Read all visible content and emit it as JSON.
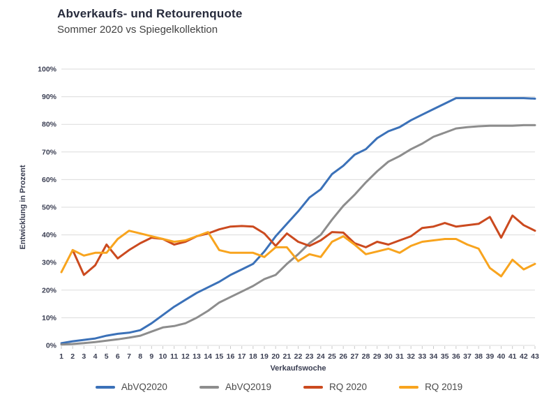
{
  "chart_data": {
    "type": "line",
    "title": "Abverkaufs- und Retourenquote",
    "subtitle": "Sommer 2020 vs Spiegelkollektion",
    "xlabel": "Verkaufswoche",
    "ylabel": "Entwicklung in Prozent",
    "x": [
      1,
      2,
      3,
      4,
      5,
      6,
      7,
      8,
      9,
      10,
      11,
      12,
      13,
      14,
      15,
      16,
      17,
      18,
      19,
      20,
      21,
      22,
      23,
      24,
      25,
      26,
      27,
      28,
      29,
      30,
      31,
      32,
      33,
      34,
      35,
      36,
      37,
      38,
      39,
      40,
      41,
      42,
      43
    ],
    "ylim": [
      0,
      100
    ],
    "ytick_step": 10,
    "ytick_suffix": "%",
    "grid": true,
    "legend_position": "bottom",
    "series": [
      {
        "name": "AbVQ2020",
        "color": "#3b71b8",
        "values": [
          0.8,
          1.5,
          2,
          2.5,
          3.5,
          4.2,
          4.6,
          5.5,
          8,
          11,
          14,
          16.5,
          19,
          21,
          23,
          25.5,
          27.5,
          29.5,
          34,
          39.5,
          44,
          48.5,
          53.5,
          56.5,
          62,
          65,
          69,
          71,
          75,
          77.5,
          79,
          81.5,
          83.5,
          85.5,
          87.5,
          89.5,
          89.5,
          89.5,
          89.5,
          89.5,
          89.5,
          89.5,
          89.3
        ]
      },
      {
        "name": "AbVQ2019",
        "color": "#8d8d8d",
        "values": [
          0.3,
          0.5,
          0.8,
          1.2,
          1.7,
          2.2,
          2.8,
          3.5,
          5,
          6.5,
          7,
          8,
          10,
          12.5,
          15.5,
          17.5,
          19.5,
          21.5,
          24,
          25.5,
          29.5,
          33,
          37,
          40,
          45.5,
          50.5,
          54.5,
          59,
          63,
          66.5,
          68.5,
          71,
          73,
          75.5,
          77,
          78.5,
          79,
          79.3,
          79.5,
          79.5,
          79.5,
          79.7,
          79.7
        ]
      },
      {
        "name": "RQ 2020",
        "color": "#cb4a1f",
        "values": [
          null,
          34.5,
          25.5,
          29,
          36.5,
          31.5,
          34.5,
          37,
          39,
          38.5,
          36.5,
          37.5,
          39.5,
          40.5,
          42,
          43,
          43.2,
          43,
          40.5,
          36,
          40.5,
          37.5,
          36,
          38,
          41,
          40.8,
          37,
          35.5,
          37.5,
          36.5,
          38,
          39.5,
          42.5,
          43,
          44.3,
          43,
          43.5,
          44,
          46.5,
          39,
          47,
          43.5,
          41.5
        ]
      },
      {
        "name": "RQ 2019",
        "color": "#f8a41e",
        "values": [
          26.5,
          34.5,
          32.5,
          33.5,
          33.5,
          38.5,
          41.5,
          40.5,
          39.5,
          38.5,
          37.5,
          38,
          39.5,
          41,
          34.5,
          33.5,
          33.5,
          33.5,
          32,
          35.5,
          35.5,
          30.5,
          33,
          32,
          37.5,
          39.5,
          36.5,
          33,
          34,
          35,
          33.5,
          36,
          37.5,
          38,
          38.5,
          38.5,
          36.5,
          35,
          28,
          25,
          31,
          27.5,
          29.5
        ]
      }
    ],
    "style_colors": {
      "gridline": "#dbdbdb",
      "axis_tick": "#c9c9c9",
      "axis_text": "#3a3e52"
    }
  }
}
